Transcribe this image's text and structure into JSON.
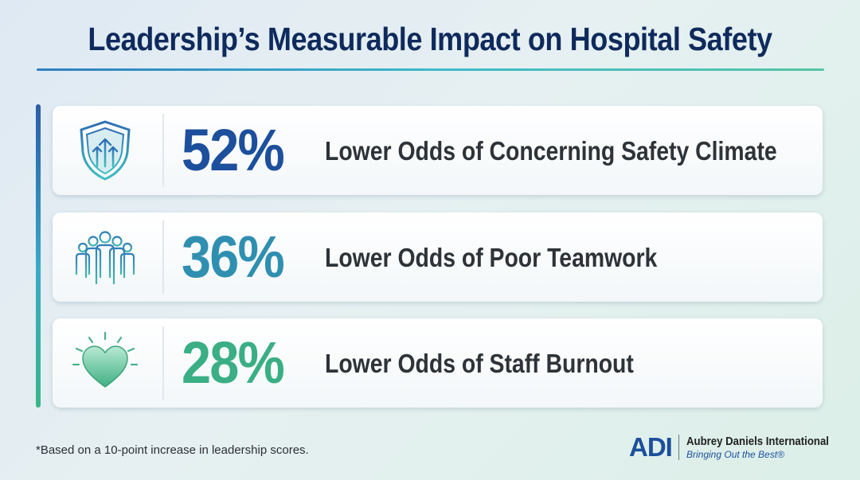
{
  "title": "Leadership’s Measurable Impact on Hospital Safety",
  "stats": [
    {
      "value": "52%",
      "label": "Lower Odds of Concerning Safety Climate",
      "icon": "shield-arrows-icon",
      "color": "#1c4f9c"
    },
    {
      "value": "36%",
      "label": "Lower Odds of Poor Teamwork",
      "icon": "team-people-icon",
      "color": "#2f8fb0"
    },
    {
      "value": "28%",
      "label": "Lower Odds of Staff Burnout",
      "icon": "glowing-heart-icon",
      "color": "#3aae84"
    }
  ],
  "footnote": "*Based on a 10-point increase in leadership scores.",
  "brand": {
    "mark": "ADI",
    "name": "Aubrey Daniels International",
    "tagline": "Bringing Out the Best®"
  }
}
